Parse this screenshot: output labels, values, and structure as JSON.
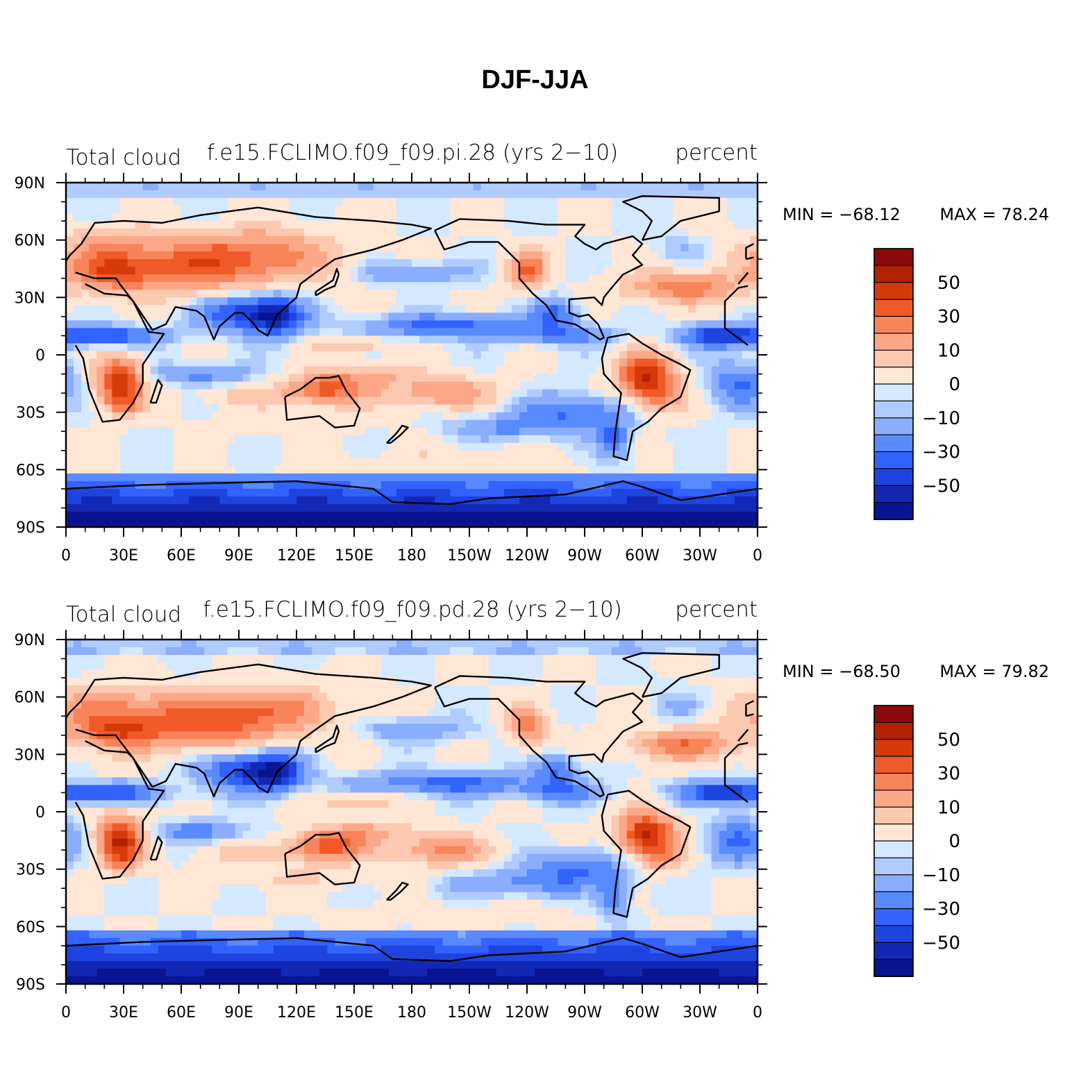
{
  "figure": {
    "title": "DJF-JJA"
  },
  "chart_data": [
    {
      "type": "heatmap",
      "left_title": "Total cloud",
      "center_title": "f.e15.FCLIMO.f09_f09.pi.28 (yrs 2−10)",
      "right_title": "percent",
      "min_label": "MIN = −68.12",
      "max_label": "MAX =   78.24",
      "lon_ticks": [
        "0",
        "30E",
        "60E",
        "90E",
        "120E",
        "150E",
        "180",
        "150W",
        "120W",
        "90W",
        "60W",
        "30W",
        "0"
      ],
      "lat_ticks": [
        "90N",
        "60N",
        "30N",
        "0",
        "30S",
        "60S",
        "90S"
      ],
      "colorbar_labels": [
        "50",
        "30",
        "10",
        "0",
        "−10",
        "−30",
        "−50"
      ]
    },
    {
      "type": "heatmap",
      "left_title": "Total cloud",
      "center_title": "f.e15.FCLIMO.f09_f09.pd.28 (yrs 2−10)",
      "right_title": "percent",
      "min_label": "MIN = −68.50",
      "max_label": "MAX =   79.82",
      "lon_ticks": [
        "0",
        "30E",
        "60E",
        "90E",
        "120E",
        "150E",
        "180",
        "150W",
        "120W",
        "90W",
        "60W",
        "30W",
        "0"
      ],
      "lat_ticks": [
        "90N",
        "60N",
        "30N",
        "0",
        "30S",
        "60S",
        "90S"
      ],
      "colorbar_labels": [
        "50",
        "30",
        "10",
        "0",
        "−10",
        "−30",
        "−50"
      ]
    }
  ],
  "colors": {
    "levels": [
      "#8c0a0a",
      "#b32100",
      "#d63a0a",
      "#f05a28",
      "#f8845a",
      "#fca888",
      "#fcc8b0",
      "#ffe6d5",
      "#d4e8ff",
      "#b0ccff",
      "#8aadff",
      "#5a8aff",
      "#3262ff",
      "#1e44e0",
      "#1228b4",
      "#0a1490"
    ],
    "land_outline": "#000000"
  }
}
